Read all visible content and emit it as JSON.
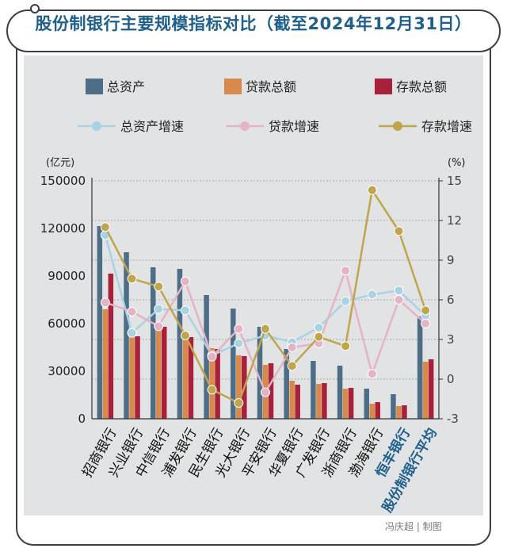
{
  "title": "股份制银行主要规模指标对比（截至2024年12月31日）",
  "credit": "冯庆超 | 制图",
  "colors": {
    "title": "#1e5f8c",
    "total_assets": "#4e6e88",
    "loans": "#d9894a",
    "deposits": "#a8203a",
    "assets_growth": "#a9d2e2",
    "loans_growth": "#e5b3c6",
    "deposits_growth": "#bfa64c",
    "highlight_label": "#1e5f8c"
  },
  "chart_data": {
    "type": "bar",
    "title": "股份制银行主要规模指标对比（截至2024年12月31日）",
    "categories": [
      "招商银行",
      "兴业银行",
      "中信银行",
      "浦发银行",
      "民生银行",
      "光大银行",
      "平安银行",
      "华夏银行",
      "广发银行",
      "浙商银行",
      "渤海银行",
      "恒丰银行",
      "股份制银行平均"
    ],
    "highlighted_categories": [
      "恒丰银行",
      "股份制银行平均"
    ],
    "left_axis": {
      "unit": "(亿元)",
      "ylim": [
        0,
        150000
      ],
      "ticks": [
        "0",
        "30000",
        "60000",
        "90000",
        "120000",
        "150000"
      ]
    },
    "right_axis": {
      "unit": "(%)",
      "ylim": [
        -3,
        15
      ],
      "ticks": [
        "-3",
        "0",
        "3",
        "6",
        "9",
        "12",
        "15"
      ]
    },
    "grid": true,
    "legend_position": "top",
    "bar_series": [
      {
        "name": "总资产",
        "values": [
          121500,
          105000,
          95500,
          94500,
          78000,
          69500,
          58000,
          44000,
          36500,
          33500,
          19000,
          15500,
          64500
        ]
      },
      {
        "name": "贷款总额",
        "values": [
          69000,
          56500,
          58000,
          55000,
          44500,
          40000,
          34000,
          24000,
          22000,
          19000,
          9500,
          8000,
          36000
        ]
      },
      {
        "name": "存款总额",
        "values": [
          91500,
          52000,
          58000,
          51500,
          44000,
          39500,
          35000,
          21500,
          22500,
          19500,
          10500,
          8500,
          37500
        ]
      }
    ],
    "line_series": [
      {
        "name": "总资产增速",
        "values": [
          10.9,
          3.5,
          5.3,
          5.2,
          1.8,
          2.7,
          3.3,
          2.8,
          3.9,
          5.9,
          6.4,
          6.7,
          4.8
        ]
      },
      {
        "name": "贷款增速",
        "values": [
          5.8,
          5.1,
          4.0,
          7.4,
          1.7,
          3.8,
          -1.0,
          2.4,
          2.7,
          8.2,
          0.4,
          6.0,
          4.2
        ]
      },
      {
        "name": "存款增速",
        "values": [
          11.5,
          7.6,
          7.0,
          3.3,
          -0.8,
          -1.8,
          3.8,
          1.0,
          3.2,
          2.5,
          14.3,
          11.2,
          5.2
        ]
      }
    ]
  }
}
